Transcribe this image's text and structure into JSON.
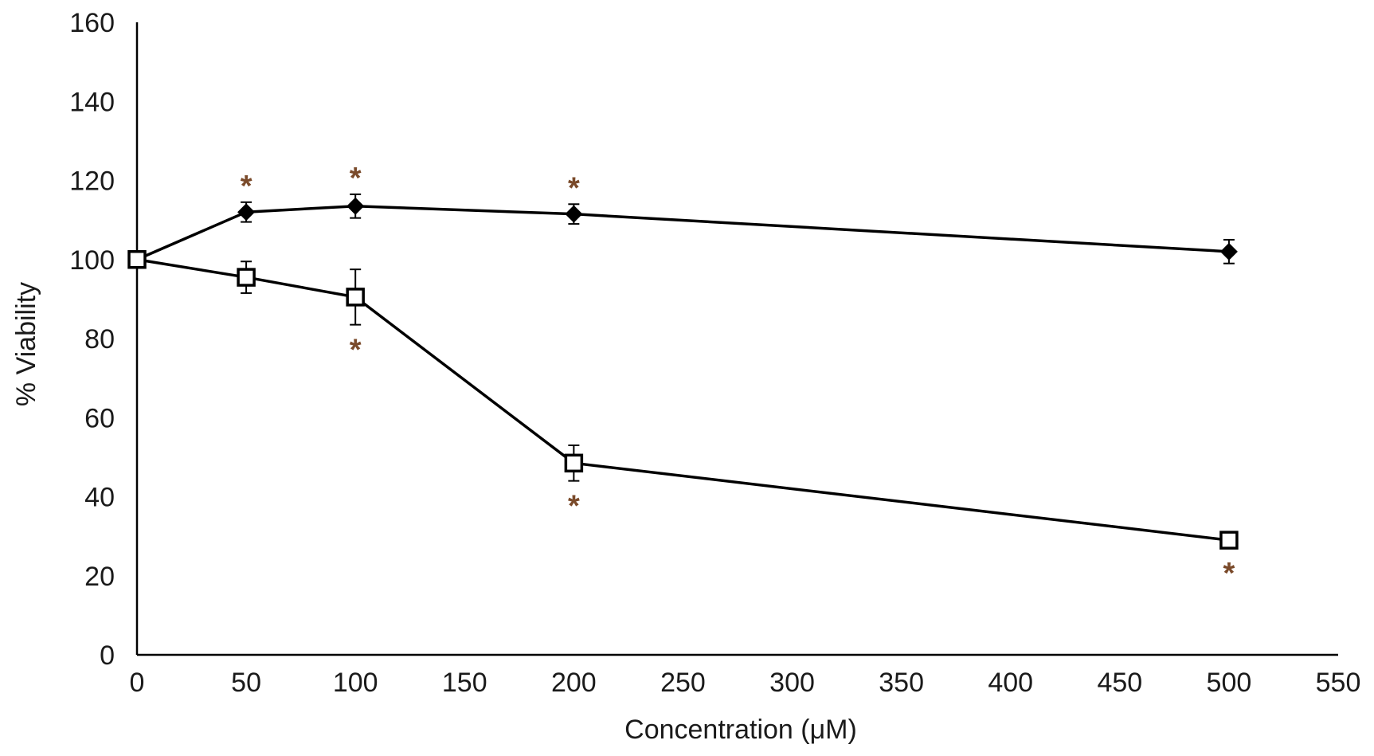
{
  "chart_data": {
    "type": "line",
    "xlabel": "Concentration (μM)",
    "ylabel": "% Viability",
    "xlim": [
      0,
      550
    ],
    "ylim": [
      0,
      160
    ],
    "x_ticks": [
      "0",
      "50",
      "100",
      "150",
      "200",
      "250",
      "300",
      "350",
      "400",
      "450",
      "500",
      "550"
    ],
    "y_ticks": [
      "0",
      "20",
      "40",
      "60",
      "80",
      "100",
      "120",
      "140",
      "160"
    ],
    "grid": false,
    "legend": "none",
    "series": [
      {
        "marker": "diamond-filled",
        "color": "#000000",
        "x": [
          0,
          50,
          100,
          200,
          500
        ],
        "y": [
          100,
          112,
          113.5,
          111.5,
          102
        ],
        "error": [
          2,
          2.5,
          3,
          2.5,
          3
        ],
        "significance": [
          "",
          "*",
          "*",
          "*",
          ""
        ]
      },
      {
        "marker": "square-open",
        "color": "#000000",
        "x": [
          0,
          50,
          100,
          200,
          500
        ],
        "y": [
          100,
          95.5,
          90.5,
          48.5,
          29
        ],
        "error": [
          1.5,
          4,
          7,
          4.5,
          2
        ],
        "significance": [
          "",
          "",
          "*",
          "*",
          "*"
        ]
      }
    ],
    "significance_symbol": "*",
    "significance_color": "#7a4a2a"
  }
}
